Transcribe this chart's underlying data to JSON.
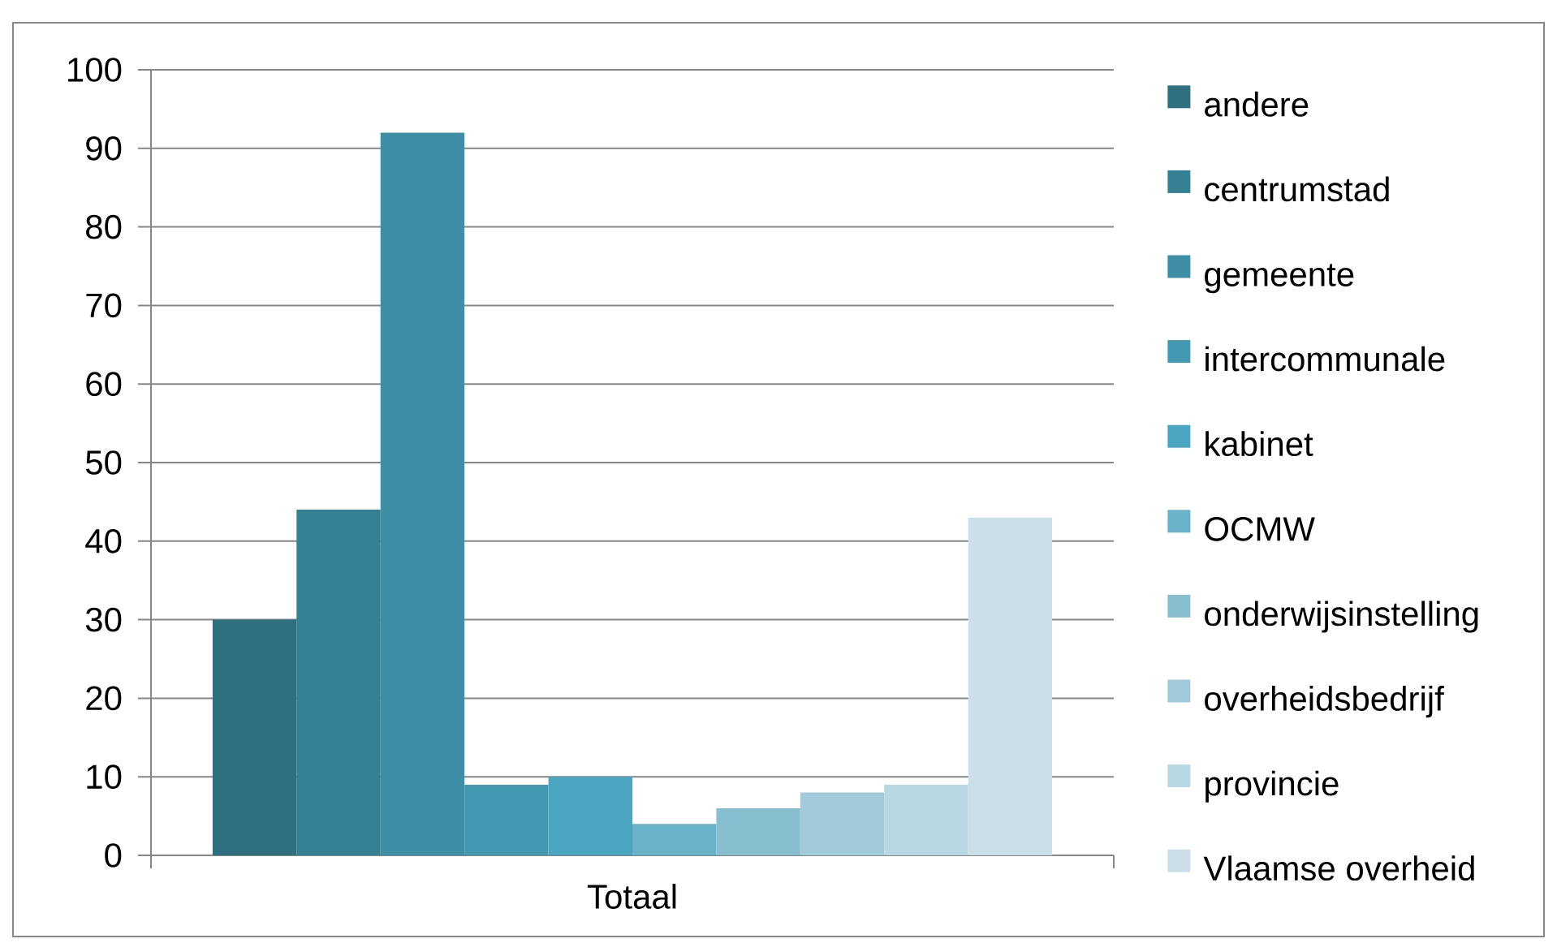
{
  "chart_data": {
    "type": "bar",
    "categories": [
      "Totaal"
    ],
    "series": [
      {
        "name": "andere",
        "color": "#2e6f80",
        "values": [
          30
        ]
      },
      {
        "name": "centrumstad",
        "color": "#348193",
        "values": [
          44
        ]
      },
      {
        "name": "gemeente",
        "color": "#3e8fa6",
        "values": [
          92
        ]
      },
      {
        "name": "intercommunale",
        "color": "#4399b2",
        "values": [
          9
        ]
      },
      {
        "name": "kabinet",
        "color": "#4aa6c1",
        "values": [
          10
        ]
      },
      {
        "name": "OCMW",
        "color": "#68b3ca",
        "values": [
          4
        ]
      },
      {
        "name": "onderwijsinstelling",
        "color": "#87bfd1",
        "values": [
          6
        ]
      },
      {
        "name": "overheidsbedrijf",
        "color": "#a1cbdb",
        "values": [
          8
        ]
      },
      {
        "name": "provincie",
        "color": "#b8d8e3",
        "values": [
          9
        ]
      },
      {
        "name": "Vlaamse overheid",
        "color": "#ccdfe8",
        "values": [
          43
        ]
      }
    ],
    "ylim": [
      0,
      100
    ],
    "yticks": [
      0,
      10,
      20,
      30,
      40,
      50,
      60,
      70,
      80,
      90,
      100
    ],
    "grid": "y",
    "legend": "right"
  }
}
